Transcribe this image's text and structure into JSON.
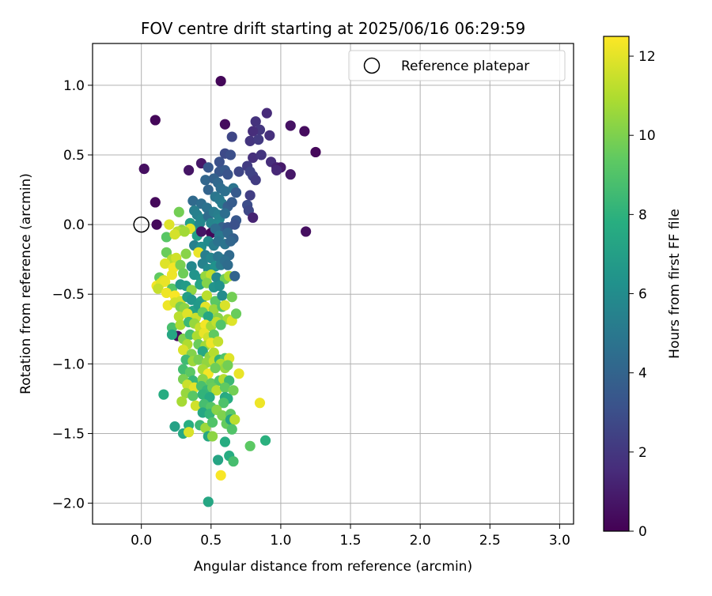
{
  "chart_data": {
    "type": "scatter",
    "title": "FOV centre drift starting at 2025/06/16 06:29:59",
    "xlabel": "Angular distance from reference (arcmin)",
    "ylabel": "Rotation from reference (arcmin)",
    "xlim": [
      -0.35,
      3.1
    ],
    "ylim": [
      -2.15,
      1.3
    ],
    "xticks": [
      "0.0",
      "0.5",
      "1.0",
      "1.5",
      "2.0",
      "2.5",
      "3.0"
    ],
    "yticks": [
      "1.0",
      "0.5",
      "0.0",
      "−0.5",
      "−1.0",
      "−1.5",
      "−2.0"
    ],
    "grid": true,
    "legend": {
      "placement": "top-right",
      "entries": [
        "Reference platepar"
      ]
    },
    "reference_point": {
      "x": 0.0,
      "y": 0.0
    },
    "colorbar": {
      "label": "Hours from first FF file",
      "range": [
        0,
        12.5
      ],
      "ticks": [
        "0",
        "2",
        "4",
        "6",
        "8",
        "10",
        "12"
      ],
      "colormap": "viridis"
    },
    "points": [
      [
        0.57,
        1.03,
        0.2
      ],
      [
        0.1,
        0.75,
        0.2
      ],
      [
        0.6,
        0.72,
        0.4
      ],
      [
        0.9,
        0.8,
        1.5
      ],
      [
        0.82,
        0.74,
        1.8
      ],
      [
        0.85,
        0.68,
        2.0
      ],
      [
        0.8,
        0.67,
        1.6
      ],
      [
        0.92,
        0.64,
        1.7
      ],
      [
        0.78,
        0.6,
        1.9
      ],
      [
        0.84,
        0.61,
        2.1
      ],
      [
        1.07,
        0.71,
        0.6
      ],
      [
        1.17,
        0.67,
        0.4
      ],
      [
        1.25,
        0.52,
        0.3
      ],
      [
        0.65,
        0.63,
        2.6
      ],
      [
        0.6,
        0.51,
        2.8
      ],
      [
        0.64,
        0.5,
        3.0
      ],
      [
        0.8,
        0.48,
        1.7
      ],
      [
        0.86,
        0.5,
        1.9
      ],
      [
        0.93,
        0.45,
        1.6
      ],
      [
        0.97,
        0.41,
        1.2
      ],
      [
        1.0,
        0.41,
        0.9
      ],
      [
        0.97,
        0.39,
        1.4
      ],
      [
        1.07,
        0.36,
        0.8
      ],
      [
        0.8,
        0.35,
        2.4
      ],
      [
        0.82,
        0.32,
        2.2
      ],
      [
        0.02,
        0.4,
        0.5
      ],
      [
        0.34,
        0.39,
        0.7
      ],
      [
        0.43,
        0.44,
        0.8
      ],
      [
        0.48,
        0.41,
        3.4
      ],
      [
        0.56,
        0.45,
        3.1
      ],
      [
        0.56,
        0.38,
        3.3
      ],
      [
        0.6,
        0.39,
        3.5
      ],
      [
        0.62,
        0.36,
        3.2
      ],
      [
        0.7,
        0.38,
        2.6
      ],
      [
        0.76,
        0.42,
        2.2
      ],
      [
        0.78,
        0.38,
        2.5
      ],
      [
        0.46,
        0.32,
        4.1
      ],
      [
        0.52,
        0.33,
        3.9
      ],
      [
        0.55,
        0.3,
        4.2
      ],
      [
        0.57,
        0.26,
        4.4
      ],
      [
        0.6,
        0.24,
        4.6
      ],
      [
        0.66,
        0.26,
        4.8
      ],
      [
        0.68,
        0.23,
        3.5
      ],
      [
        0.78,
        0.21,
        2.3
      ],
      [
        0.1,
        0.16,
        0.3
      ],
      [
        0.37,
        0.17,
        4.3
      ],
      [
        0.43,
        0.15,
        4.5
      ],
      [
        0.47,
        0.12,
        4.7
      ],
      [
        0.48,
        0.25,
        4.0
      ],
      [
        0.53,
        0.2,
        4.9
      ],
      [
        0.56,
        0.18,
        5.0
      ],
      [
        0.58,
        0.15,
        5.2
      ],
      [
        0.62,
        0.13,
        3.8
      ],
      [
        0.65,
        0.16,
        3.6
      ],
      [
        0.76,
        0.14,
        2.9
      ],
      [
        0.77,
        0.1,
        2.7
      ],
      [
        0.8,
        0.05,
        1.2
      ],
      [
        0.38,
        0.1,
        5.3
      ],
      [
        0.4,
        0.07,
        5.4
      ],
      [
        0.43,
        0.04,
        5.6
      ],
      [
        0.48,
        0.06,
        4.4
      ],
      [
        0.52,
        0.09,
        5.1
      ],
      [
        0.55,
        0.07,
        5.3
      ],
      [
        0.56,
        0.04,
        5.5
      ],
      [
        0.6,
        0.08,
        4.5
      ],
      [
        0.68,
        0.03,
        3.4
      ],
      [
        0.27,
        0.09,
        9.8
      ],
      [
        0.35,
        0.01,
        6.9
      ],
      [
        0.29,
        -0.04,
        10.3
      ],
      [
        0.37,
        -0.03,
        6.5
      ],
      [
        0.42,
        0.01,
        5.7
      ],
      [
        0.5,
        0.01,
        5.6
      ],
      [
        0.55,
        0.0,
        5.8
      ],
      [
        0.58,
        -0.02,
        3.9
      ],
      [
        0.62,
        -0.02,
        3.4
      ],
      [
        0.67,
        0.0,
        3.1
      ],
      [
        0.11,
        0.0,
        0.3
      ],
      [
        0.2,
        0.0,
        11.9
      ],
      [
        0.26,
        -0.05,
        11.2
      ],
      [
        0.35,
        -0.03,
        12.0
      ],
      [
        1.18,
        -0.05,
        0.5
      ],
      [
        0.18,
        -0.09,
        9.2
      ],
      [
        0.24,
        -0.07,
        11.7
      ],
      [
        0.31,
        -0.05,
        10.7
      ],
      [
        0.4,
        -0.08,
        7.0
      ],
      [
        0.43,
        -0.05,
        0.7
      ],
      [
        0.5,
        -0.06,
        0.2
      ],
      [
        0.53,
        -0.03,
        4.5
      ],
      [
        0.56,
        -0.08,
        5.0
      ],
      [
        0.62,
        -0.06,
        4.2
      ],
      [
        0.66,
        -0.1,
        3.8
      ],
      [
        0.38,
        -0.15,
        5.4
      ],
      [
        0.43,
        -0.16,
        6.1
      ],
      [
        0.48,
        -0.12,
        5.9
      ],
      [
        0.52,
        -0.15,
        5.2
      ],
      [
        0.55,
        -0.12,
        4.7
      ],
      [
        0.6,
        -0.14,
        4.8
      ],
      [
        0.64,
        -0.12,
        4.1
      ],
      [
        0.18,
        -0.2,
        9.6
      ],
      [
        0.22,
        -0.25,
        11.1
      ],
      [
        0.25,
        -0.24,
        11.6
      ],
      [
        0.32,
        -0.21,
        10.2
      ],
      [
        0.41,
        -0.2,
        12.1
      ],
      [
        0.46,
        -0.22,
        5.3
      ],
      [
        0.5,
        -0.24,
        5.7
      ],
      [
        0.55,
        -0.23,
        4.9
      ],
      [
        0.58,
        -0.25,
        5.0
      ],
      [
        0.63,
        -0.22,
        4.3
      ],
      [
        0.17,
        -0.28,
        11.9
      ],
      [
        0.23,
        -0.31,
        12.3
      ],
      [
        0.28,
        -0.29,
        9.9
      ],
      [
        0.36,
        -0.3,
        5.8
      ],
      [
        0.44,
        -0.28,
        5.5
      ],
      [
        0.48,
        -0.32,
        5.9
      ],
      [
        0.53,
        -0.3,
        6.3
      ],
      [
        0.57,
        -0.29,
        5.1
      ],
      [
        0.6,
        -0.26,
        4.6
      ],
      [
        0.62,
        -0.29,
        4.4
      ],
      [
        0.13,
        -0.38,
        9.4
      ],
      [
        0.16,
        -0.4,
        11.8
      ],
      [
        0.22,
        -0.36,
        12.2
      ],
      [
        0.3,
        -0.35,
        9.7
      ],
      [
        0.38,
        -0.36,
        6.4
      ],
      [
        0.43,
        -0.39,
        6.6
      ],
      [
        0.46,
        -0.37,
        10.5
      ],
      [
        0.5,
        -0.36,
        11.3
      ],
      [
        0.54,
        -0.38,
        5.8
      ],
      [
        0.6,
        -0.39,
        9.7
      ],
      [
        0.63,
        -0.37,
        11.0
      ],
      [
        0.67,
        -0.37,
        4.0
      ],
      [
        0.11,
        -0.44,
        12.3
      ],
      [
        0.14,
        -0.42,
        11.9
      ],
      [
        0.17,
        -0.41,
        12.1
      ],
      [
        0.22,
        -0.46,
        9.1
      ],
      [
        0.28,
        -0.43,
        6.6
      ],
      [
        0.32,
        -0.44,
        6.8
      ],
      [
        0.36,
        -0.47,
        10.4
      ],
      [
        0.42,
        -0.43,
        7.3
      ],
      [
        0.47,
        -0.42,
        10.1
      ],
      [
        0.52,
        -0.45,
        6.4
      ],
      [
        0.56,
        -0.44,
        6.2
      ],
      [
        0.12,
        -0.46,
        11.4
      ],
      [
        0.18,
        -0.49,
        12.2
      ],
      [
        0.24,
        -0.51,
        12.4
      ],
      [
        0.28,
        -0.55,
        11.7
      ],
      [
        0.33,
        -0.52,
        6.9
      ],
      [
        0.36,
        -0.54,
        6.5
      ],
      [
        0.43,
        -0.55,
        7.1
      ],
      [
        0.47,
        -0.51,
        11.2
      ],
      [
        0.53,
        -0.55,
        9.3
      ],
      [
        0.58,
        -0.51,
        6.0
      ],
      [
        0.65,
        -0.52,
        9.8
      ],
      [
        0.19,
        -0.58,
        12.2
      ],
      [
        0.24,
        -0.56,
        11.6
      ],
      [
        0.28,
        -0.59,
        9.9
      ],
      [
        0.31,
        -0.6,
        10.3
      ],
      [
        0.37,
        -0.62,
        7.2
      ],
      [
        0.41,
        -0.58,
        6.7
      ],
      [
        0.46,
        -0.59,
        12.0
      ],
      [
        0.52,
        -0.61,
        10.6
      ],
      [
        0.58,
        -0.59,
        9.1
      ],
      [
        0.6,
        -0.58,
        11.8
      ],
      [
        0.27,
        -0.66,
        11.2
      ],
      [
        0.33,
        -0.64,
        11.9
      ],
      [
        0.39,
        -0.67,
        11.5
      ],
      [
        0.44,
        -0.63,
        9.5
      ],
      [
        0.48,
        -0.66,
        7.4
      ],
      [
        0.55,
        -0.67,
        10.2
      ],
      [
        0.62,
        -0.68,
        10.8
      ],
      [
        0.65,
        -0.69,
        11.9
      ],
      [
        0.68,
        -0.64,
        9.6
      ],
      [
        0.22,
        -0.74,
        8.8
      ],
      [
        0.28,
        -0.72,
        10.9
      ],
      [
        0.34,
        -0.7,
        8.4
      ],
      [
        0.38,
        -0.71,
        10.5
      ],
      [
        0.42,
        -0.74,
        11.4
      ],
      [
        0.46,
        -0.72,
        12.3
      ],
      [
        0.5,
        -0.73,
        10.8
      ],
      [
        0.54,
        -0.7,
        11.3
      ],
      [
        0.57,
        -0.72,
        9.0
      ],
      [
        0.26,
        -0.8,
        0.4
      ],
      [
        0.22,
        -0.79,
        7.4
      ],
      [
        0.3,
        -0.82,
        10.0
      ],
      [
        0.35,
        -0.79,
        8.7
      ],
      [
        0.4,
        -0.8,
        10.9
      ],
      [
        0.45,
        -0.78,
        12.1
      ],
      [
        0.48,
        -0.81,
        11.6
      ],
      [
        0.52,
        -0.79,
        9.4
      ],
      [
        0.33,
        -0.86,
        11.0
      ],
      [
        0.41,
        -0.86,
        9.6
      ],
      [
        0.46,
        -0.87,
        10.7
      ],
      [
        0.5,
        -0.85,
        12.2
      ],
      [
        0.55,
        -0.84,
        11.4
      ],
      [
        0.3,
        -0.9,
        11.8
      ],
      [
        0.36,
        -0.93,
        10.1
      ],
      [
        0.44,
        -0.91,
        7.5
      ],
      [
        0.49,
        -0.95,
        10.3
      ],
      [
        0.52,
        -0.92,
        11.1
      ],
      [
        0.32,
        -0.97,
        8.5
      ],
      [
        0.37,
        -0.98,
        10.6
      ],
      [
        0.41,
        -0.97,
        9.9
      ],
      [
        0.47,
        -0.99,
        10.4
      ],
      [
        0.52,
        -0.98,
        11.3
      ],
      [
        0.56,
        -0.97,
        8.1
      ],
      [
        0.6,
        -0.96,
        9.0
      ],
      [
        0.63,
        -0.96,
        11.9
      ],
      [
        0.57,
        -1.0,
        10.9
      ],
      [
        0.6,
        -1.03,
        10.5
      ],
      [
        0.62,
        -1.01,
        9.8
      ],
      [
        0.3,
        -1.04,
        8.6
      ],
      [
        0.35,
        -1.06,
        9.3
      ],
      [
        0.44,
        -1.04,
        10.8
      ],
      [
        0.48,
        -1.07,
        12.3
      ],
      [
        0.53,
        -1.03,
        9.7
      ],
      [
        0.7,
        -1.07,
        12.1
      ],
      [
        0.3,
        -1.11,
        9.9
      ],
      [
        0.37,
        -1.12,
        8.3
      ],
      [
        0.44,
        -1.11,
        10.2
      ],
      [
        0.5,
        -1.14,
        9.5
      ],
      [
        0.56,
        -1.12,
        9.0
      ],
      [
        0.59,
        -1.11,
        11.1
      ],
      [
        0.63,
        -1.12,
        8.4
      ],
      [
        0.33,
        -1.15,
        11.5
      ],
      [
        0.38,
        -1.17,
        12.0
      ],
      [
        0.43,
        -1.16,
        8.8
      ],
      [
        0.47,
        -1.19,
        8.3
      ],
      [
        0.51,
        -1.17,
        9.6
      ],
      [
        0.54,
        -1.19,
        11.2
      ],
      [
        0.6,
        -1.17,
        9.4
      ],
      [
        0.66,
        -1.19,
        9.8
      ],
      [
        0.16,
        -1.22,
        7.7
      ],
      [
        0.32,
        -1.21,
        10.5
      ],
      [
        0.37,
        -1.23,
        9.2
      ],
      [
        0.44,
        -1.22,
        8.1
      ],
      [
        0.49,
        -1.24,
        7.6
      ],
      [
        0.6,
        -1.24,
        7.5
      ],
      [
        0.62,
        -1.25,
        7.7
      ],
      [
        0.29,
        -1.27,
        10.8
      ],
      [
        0.39,
        -1.3,
        11.6
      ],
      [
        0.45,
        -1.29,
        8.7
      ],
      [
        0.5,
        -1.31,
        9.1
      ],
      [
        0.59,
        -1.28,
        8.9
      ],
      [
        0.85,
        -1.28,
        12.2
      ],
      [
        0.44,
        -1.35,
        7.4
      ],
      [
        0.49,
        -1.36,
        8.2
      ],
      [
        0.54,
        -1.33,
        10.2
      ],
      [
        0.58,
        -1.37,
        10.0
      ],
      [
        0.64,
        -1.36,
        9.3
      ],
      [
        0.24,
        -1.45,
        7.1
      ],
      [
        0.34,
        -1.44,
        7.8
      ],
      [
        0.42,
        -1.44,
        8.4
      ],
      [
        0.46,
        -1.46,
        10.6
      ],
      [
        0.51,
        -1.42,
        9.0
      ],
      [
        0.61,
        -1.43,
        9.5
      ],
      [
        0.64,
        -1.4,
        7.3
      ],
      [
        0.67,
        -1.4,
        11.2
      ],
      [
        0.3,
        -1.5,
        7.5
      ],
      [
        0.34,
        -1.49,
        11.8
      ],
      [
        0.48,
        -1.52,
        7.4
      ],
      [
        0.51,
        -1.52,
        10.3
      ],
      [
        0.65,
        -1.47,
        9.0
      ],
      [
        0.6,
        -1.56,
        7.7
      ],
      [
        0.78,
        -1.59,
        9.3
      ],
      [
        0.89,
        -1.55,
        7.9
      ],
      [
        0.55,
        -1.69,
        7.3
      ],
      [
        0.63,
        -1.66,
        7.7
      ],
      [
        0.66,
        -1.7,
        8.7
      ],
      [
        0.57,
        -1.8,
        12.4
      ],
      [
        0.48,
        -1.99,
        7.4
      ]
    ]
  }
}
